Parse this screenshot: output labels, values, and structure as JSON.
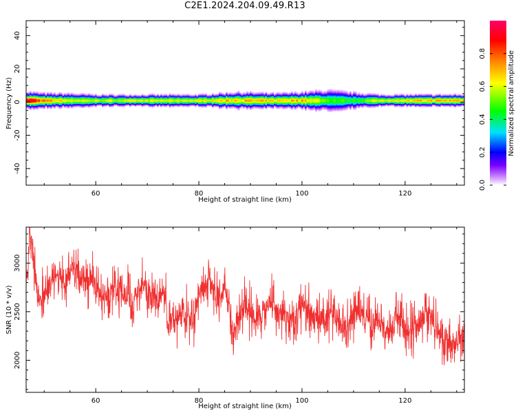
{
  "title": "C2E1.2024.204.09.49.R13",
  "chart_data": [
    {
      "type": "heatmap",
      "xlabel": "Height of straight line (km)",
      "ylabel": "Frequency (Hz)",
      "xlim": [
        46.5,
        131.5
      ],
      "ylim": [
        -50,
        49
      ],
      "xticks": [
        60,
        80,
        100,
        120
      ],
      "yticks": [
        -40,
        -20,
        0,
        20,
        40
      ],
      "ridge_frequency_hz": 1,
      "colorbar": {
        "label": "Normalized spectral amplitude",
        "ticks": [
          0.0,
          0.2,
          0.4,
          0.6,
          0.8
        ],
        "range": [
          0,
          1
        ]
      },
      "colormap_stops": [
        "#ffffff",
        "#cc88ff",
        "#7a00ff",
        "#0000ff",
        "#00e0ff",
        "#00ff00",
        "#ffff00",
        "#ff8800",
        "#ff0000",
        "#ff0066"
      ],
      "band_profile": [
        {
          "height_km": 47,
          "halfwidth_hz": 3.5,
          "peak": 0.95
        },
        {
          "height_km": 50,
          "halfwidth_hz": 3.0,
          "peak": 0.75
        },
        {
          "height_km": 55,
          "halfwidth_hz": 3.0,
          "peak": 0.62
        },
        {
          "height_km": 60,
          "halfwidth_hz": 2.5,
          "peak": 0.58
        },
        {
          "height_km": 70,
          "halfwidth_hz": 2.5,
          "peak": 0.6
        },
        {
          "height_km": 80,
          "halfwidth_hz": 2.5,
          "peak": 0.62
        },
        {
          "height_km": 87,
          "halfwidth_hz": 3.5,
          "peak": 0.7
        },
        {
          "height_km": 95,
          "halfwidth_hz": 3.0,
          "peak": 0.66
        },
        {
          "height_km": 100,
          "halfwidth_hz": 3.5,
          "peak": 0.72
        },
        {
          "height_km": 105,
          "halfwidth_hz": 4.5,
          "peak": 0.5
        },
        {
          "height_km": 110,
          "halfwidth_hz": 3.5,
          "peak": 0.46
        },
        {
          "height_km": 115,
          "halfwidth_hz": 2.5,
          "peak": 0.62
        },
        {
          "height_km": 125,
          "halfwidth_hz": 2.5,
          "peak": 0.7
        },
        {
          "height_km": 131,
          "halfwidth_hz": 2.5,
          "peak": 0.72
        }
      ]
    },
    {
      "type": "line",
      "xlabel": "Height of straight line (km)",
      "ylabel": "SNR (10 * v/v)",
      "xlim": [
        46.5,
        131.5
      ],
      "ylim": [
        1670,
        3370
      ],
      "xticks": [
        60,
        80,
        100,
        120
      ],
      "yticks": [
        2000,
        2500,
        3000
      ],
      "series": [
        {
          "color": "#f03030",
          "x": [
            46.5,
            47,
            47.5,
            48,
            48.5,
            49,
            50,
            51,
            52,
            53,
            54,
            55,
            56,
            57,
            58,
            59,
            60,
            61,
            62,
            63,
            64,
            65,
            66,
            67,
            68,
            69,
            70,
            71,
            72,
            73,
            73.5,
            74,
            75,
            76,
            77,
            78,
            79,
            80,
            81,
            82,
            83,
            84,
            85,
            86,
            86.5,
            87,
            88,
            89,
            90,
            91,
            92,
            93,
            94,
            95,
            96,
            97,
            98,
            99,
            100,
            101,
            102,
            103,
            104,
            105,
            106,
            107,
            108,
            109,
            110,
            111,
            112,
            113,
            114,
            115,
            116,
            117,
            118,
            119,
            120,
            121,
            122,
            123,
            124,
            125,
            126,
            127,
            128,
            129,
            130,
            131,
            131.5
          ],
          "y": [
            2750,
            3150,
            3250,
            3000,
            2750,
            2600,
            2650,
            2800,
            2900,
            2850,
            2750,
            2900,
            2950,
            2850,
            2800,
            2850,
            2750,
            2700,
            2650,
            2700,
            2750,
            2700,
            2650,
            2600,
            2700,
            2750,
            2700,
            2650,
            2600,
            2700,
            2650,
            2350,
            2400,
            2450,
            2500,
            2450,
            2400,
            2700,
            2750,
            2800,
            2700,
            2600,
            2750,
            2500,
            2250,
            2350,
            2450,
            2550,
            2500,
            2450,
            2500,
            2550,
            2600,
            2500,
            2450,
            2450,
            2400,
            2450,
            2600,
            2500,
            2450,
            2400,
            2450,
            2500,
            2450,
            2400,
            2350,
            2400,
            2450,
            2500,
            2450,
            2400,
            2350,
            2350,
            2300,
            2300,
            2400,
            2450,
            2300,
            2350,
            2300,
            2400,
            2500,
            2450,
            2300,
            2250,
            2200,
            2100,
            2200,
            2250,
            2300
          ]
        }
      ]
    }
  ]
}
